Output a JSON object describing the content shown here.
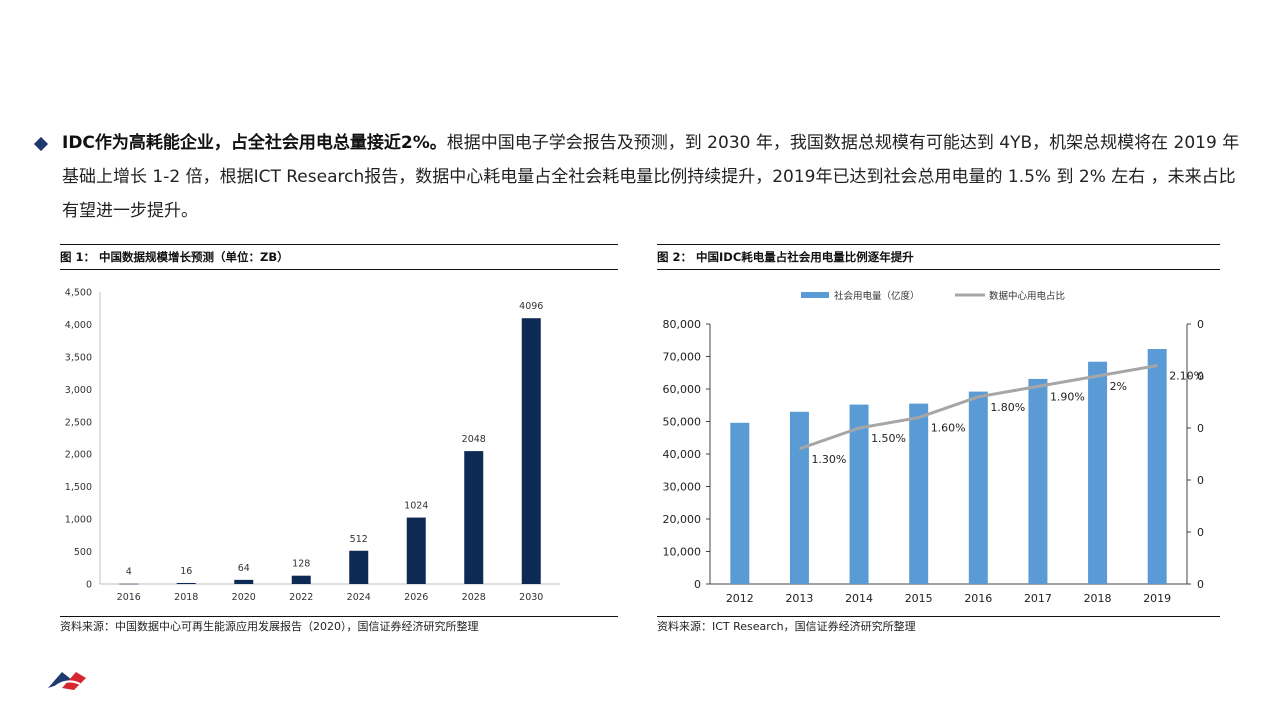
{
  "paragraph": {
    "bold_lead": "IDC作为高耗能企业，占全社会用电总量接近2%。",
    "text": "根据中国电子学会报告及预测，到 2030 年，我国数据总规模有可能达到 4YB，机架总规模将在 2019 年基础上增长 1-2 倍，根据ICT Research报告，数据中心耗电量占全社会耗电量比例持续提升，2019年已达到社会总用电量的 1.5% 到 2% 左右 ，未来占比有望进一步提升。"
  },
  "figure1": {
    "caption": "图 1：  中国数据规模增长预测（单位：ZB）",
    "source": "资料来源：中国数据中心可再生能源应用发展报告（2020），国信证券经济研究所整理"
  },
  "figure2": {
    "caption": "图 2：  中国IDC耗电量占社会用电量比例逐年提升",
    "source": "资料来源：ICT Research，国信证券经济研究所整理"
  },
  "chart_data": [
    {
      "type": "bar",
      "categories": [
        "2016",
        "2018",
        "2020",
        "2022",
        "2024",
        "2026",
        "2028",
        "2030"
      ],
      "values": [
        4,
        16,
        64,
        128,
        512,
        1024,
        2048,
        4096
      ],
      "data_labels": [
        "4",
        "16",
        "64",
        "128",
        "512",
        "1024",
        "2048",
        "4096"
      ],
      "y_ticks": [
        "0",
        "500",
        "1,000",
        "1,500",
        "2,000",
        "2,500",
        "3,000",
        "3,500",
        "4,000",
        "4,500"
      ],
      "ylim": [
        0,
        4500
      ],
      "grid": false,
      "bar_color": "#0d2a55"
    },
    {
      "type": "bar+line",
      "categories": [
        "2012",
        "2013",
        "2014",
        "2015",
        "2016",
        "2017",
        "2018",
        "2019"
      ],
      "series": [
        {
          "name": "社会用电量（亿度）",
          "kind": "bar",
          "axis": "left",
          "values": [
            49600,
            53000,
            55200,
            55500,
            59200,
            63100,
            68400,
            72300
          ],
          "color": "#5b9bd5"
        },
        {
          "name": "数据中心用电占比",
          "kind": "line",
          "axis": "right",
          "values": [
            null,
            1.3,
            1.5,
            1.6,
            1.8,
            1.9,
            2.0,
            2.1
          ],
          "labels": [
            null,
            "1.30%",
            "1.50%",
            "1.60%",
            "1.80%",
            "1.90%",
            "2%",
            "2.10%"
          ],
          "color": "#a6a6a6"
        }
      ],
      "y_left_ticks": [
        "0",
        "10,000",
        "20,000",
        "30,000",
        "40,000",
        "50,000",
        "60,000",
        "70,000",
        "80,000"
      ],
      "y_left_lim": [
        0,
        80000
      ],
      "y_right_ticks": [
        "0",
        "0",
        "0",
        "0",
        "0",
        "0"
      ],
      "y_right_lim": [
        0,
        2.5
      ],
      "legend_position": "top",
      "grid": false
    }
  ]
}
